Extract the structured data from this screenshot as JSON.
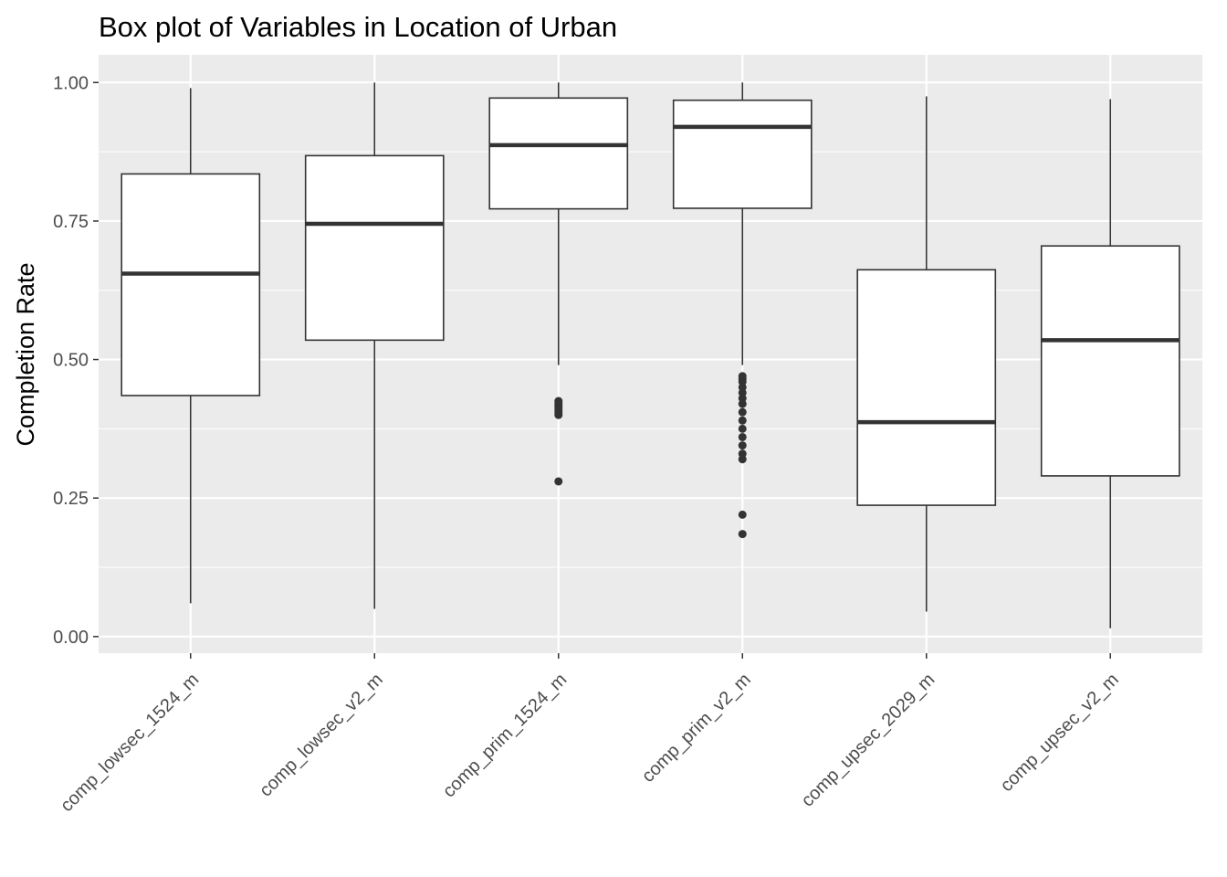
{
  "chart_data": {
    "type": "box",
    "title": "Box plot of Variables in Location of Urban",
    "xlabel": "",
    "ylabel": "Completion Rate",
    "ylim": [
      -0.03,
      1.05
    ],
    "yticks": [
      0.0,
      0.25,
      0.5,
      0.75,
      1.0
    ],
    "ytick_labels": [
      "0.00",
      "0.25",
      "0.50",
      "0.75",
      "1.00"
    ],
    "grid": true,
    "colors": {
      "panel": "#ebebeb",
      "grid": "#ffffff",
      "box_fill": "#ffffff",
      "box_line": "#333333",
      "text": "#4d4d4d"
    },
    "categories": [
      "comp_lowsec_1524_m",
      "comp_lowsec_v2_m",
      "comp_prim_1524_m",
      "comp_prim_v2_m",
      "comp_upsec_2029_m",
      "comp_upsec_v2_m"
    ],
    "boxes": [
      {
        "whisker_low": 0.06,
        "q1": 0.435,
        "median": 0.655,
        "q3": 0.835,
        "whisker_high": 0.99,
        "outliers": []
      },
      {
        "whisker_low": 0.05,
        "q1": 0.535,
        "median": 0.745,
        "q3": 0.868,
        "whisker_high": 1.0,
        "outliers": []
      },
      {
        "whisker_low": 0.49,
        "q1": 0.772,
        "median": 0.887,
        "q3": 0.972,
        "whisker_high": 1.0,
        "outliers": [
          0.425,
          0.42,
          0.415,
          0.41,
          0.405,
          0.4,
          0.28
        ]
      },
      {
        "whisker_low": 0.49,
        "q1": 0.773,
        "median": 0.92,
        "q3": 0.968,
        "whisker_high": 1.0,
        "outliers": [
          0.47,
          0.465,
          0.46,
          0.45,
          0.44,
          0.43,
          0.42,
          0.405,
          0.39,
          0.375,
          0.36,
          0.345,
          0.33,
          0.32,
          0.22,
          0.185
        ]
      },
      {
        "whisker_low": 0.045,
        "q1": 0.237,
        "median": 0.387,
        "q3": 0.662,
        "whisker_high": 0.975,
        "outliers": []
      },
      {
        "whisker_low": 0.015,
        "q1": 0.29,
        "median": 0.535,
        "q3": 0.705,
        "whisker_high": 0.97,
        "outliers": []
      }
    ]
  }
}
